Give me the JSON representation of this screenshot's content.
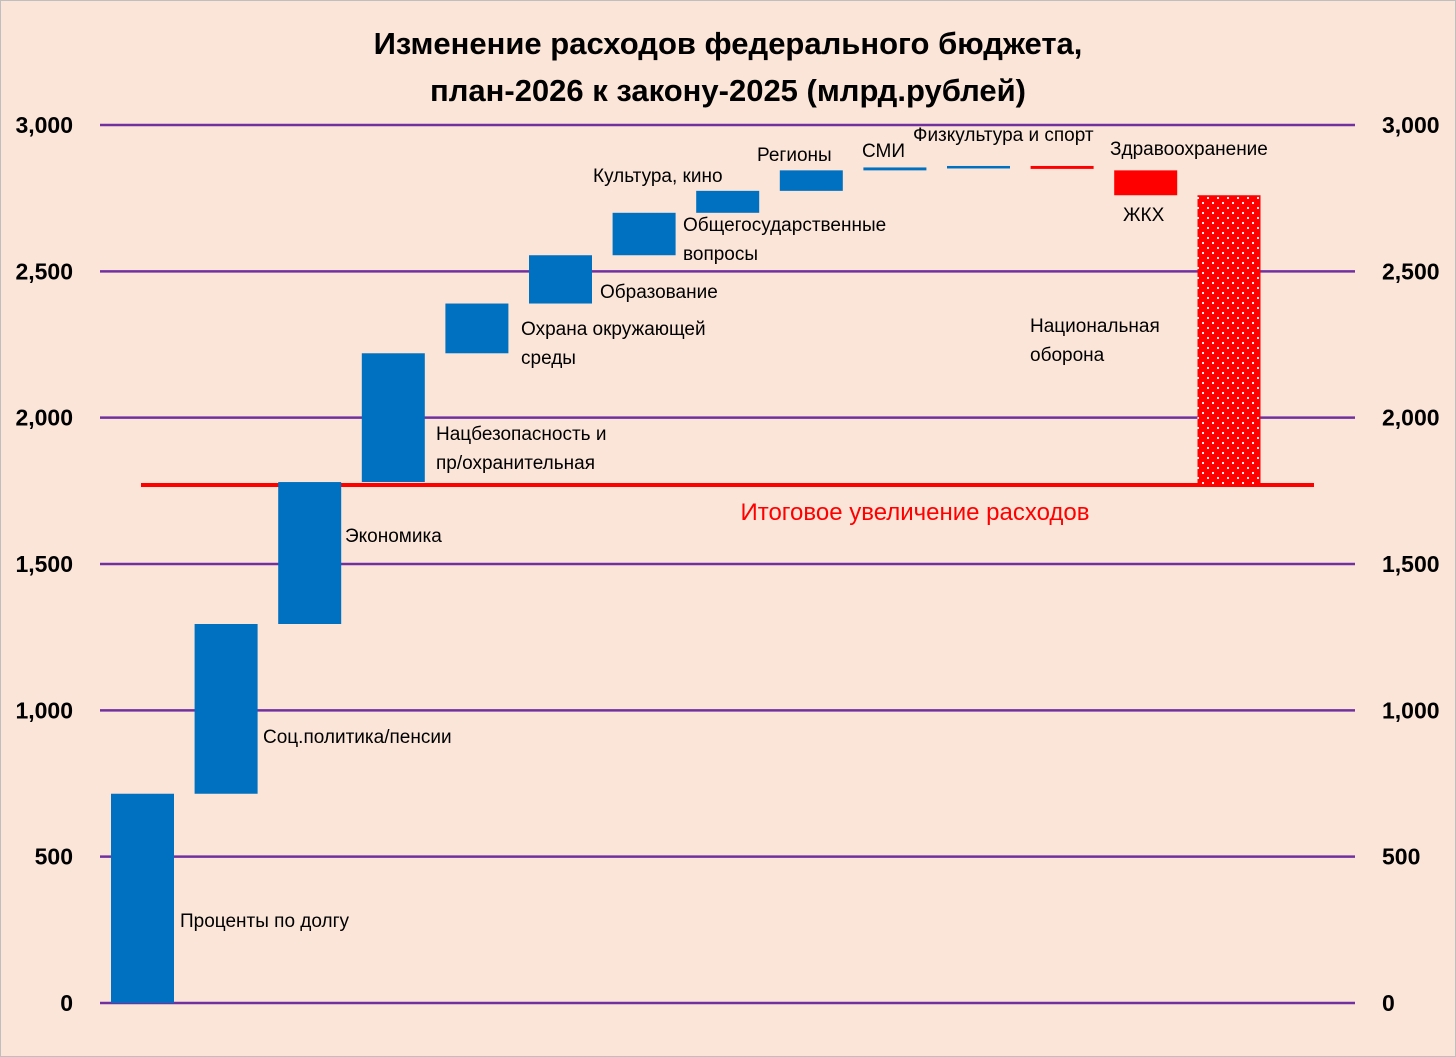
{
  "chart_data": {
    "type": "waterfall",
    "title": [
      "Изменение расходов федерального бюджета,",
      "план-2026 к закону-2025 (млрд.рублей)"
    ],
    "xlabel": "",
    "ylabel": "",
    "ylim": [
      0,
      3000
    ],
    "y_ticks": [
      0,
      500,
      1000,
      1500,
      2000,
      2500,
      3000
    ],
    "y_tick_labels": [
      "0",
      "500",
      "1,000",
      "1,500",
      "2,000",
      "2,500",
      "3,000"
    ],
    "grid": true,
    "dual_y_axis": true,
    "colors": {
      "increase": "#0070c0",
      "decrease": "#ff0000",
      "grid": "#7030a0",
      "total_line": "#ff0000",
      "background": "#fbe5d8"
    },
    "steps": [
      {
        "label": [
          "Проценты по долгу"
        ],
        "start": 0,
        "end": 715
      },
      {
        "label": [
          "Соц.политика/пенсии"
        ],
        "start": 715,
        "end": 1295
      },
      {
        "label": [
          "Экономика"
        ],
        "start": 1295,
        "end": 1780
      },
      {
        "label": [
          "Нацбезопасность и",
          "пр/охранительная"
        ],
        "start": 1780,
        "end": 2220
      },
      {
        "label": [
          "Охрана окружающей",
          "среды"
        ],
        "start": 2220,
        "end": 2390
      },
      {
        "label": [
          "Образование"
        ],
        "start": 2390,
        "end": 2555
      },
      {
        "label": [
          "Общегосударственные",
          "вопросы"
        ],
        "start": 2555,
        "end": 2700
      },
      {
        "label": [
          "Культура, кино"
        ],
        "start": 2700,
        "end": 2775
      },
      {
        "label": [
          "Регионы"
        ],
        "start": 2775,
        "end": 2845
      },
      {
        "label": [
          "СМИ"
        ],
        "start": 2845,
        "end": 2855
      },
      {
        "label": [
          "Физкультура и спорт"
        ],
        "start": 2855,
        "end": 2860
      },
      {
        "label": [
          "Здравоохранение"
        ],
        "start": 2860,
        "end": 2850
      },
      {
        "label": [
          "ЖКХ"
        ],
        "start": 2845,
        "end": 2760
      }
    ],
    "final_bar": {
      "label": [
        "Национальная",
        "оборона"
      ],
      "start": 1770,
      "end": 2760,
      "pattern": "dotted"
    },
    "total_line": {
      "label": "Итоговое увеличение расходов",
      "value": 1770
    }
  }
}
